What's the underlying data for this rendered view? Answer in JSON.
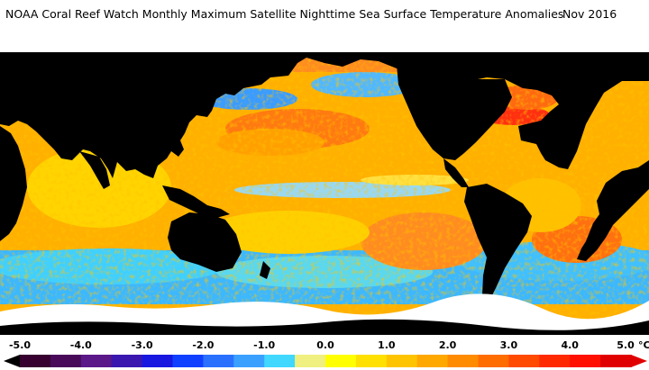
{
  "title": "NOAA Coral Reef Watch Monthly Maximum Satellite Nighttime Sea Surface Temperature Anomalies",
  "date": "Nov 2016",
  "legend": {
    "min": -5.0,
    "max": 5.0,
    "unit": "°C",
    "ticks": [
      "-5.0",
      "-4.0",
      "-3.0",
      "-2.0",
      "-1.0",
      "0.0",
      "1.0",
      "2.0",
      "3.0",
      "4.0",
      "5.0"
    ],
    "colors": [
      "#380030",
      "#4a0a5a",
      "#5a1888",
      "#3a18b0",
      "#1818e0",
      "#1040ff",
      "#2a70ff",
      "#3aa0ff",
      "#40d8ff",
      "#f0f080",
      "#ffff00",
      "#ffe000",
      "#ffc400",
      "#ffa800",
      "#ff8c00",
      "#ff6c00",
      "#ff4a00",
      "#ff2a00",
      "#ff1000",
      "#e00000"
    ]
  },
  "colors": {
    "land": "#000000",
    "ice": "#ffffff",
    "ocean_warm": "#ffb400",
    "ocean_cool": "#3ab4ff"
  }
}
